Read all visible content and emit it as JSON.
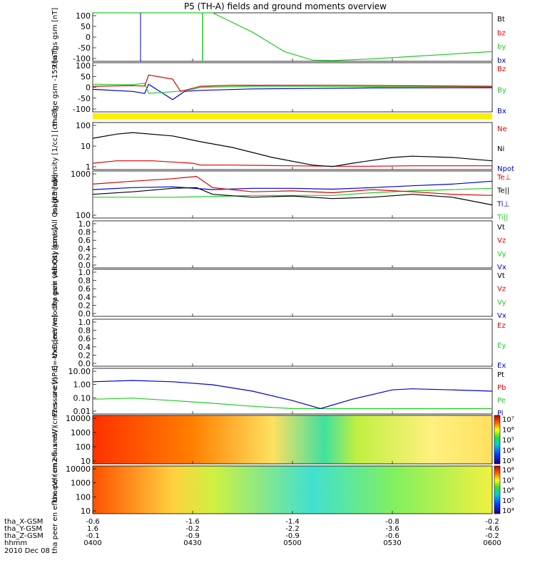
{
  "title": "P5 (TH-A) fields and ground moments overview",
  "colors": {
    "black": "#000000",
    "red": "#e00000",
    "green": "#22cc22",
    "blue": "#0000cc",
    "yellow": "#ffee00"
  },
  "chart_data": [
    {
      "type": "line",
      "ylabel": "tha fgs gsm [nT]",
      "yticks": [
        "100",
        "50",
        "0",
        "-50",
        "-100"
      ],
      "ylim": [
        -100,
        100
      ],
      "legend": [
        "Bt",
        "bz",
        "by",
        "bx"
      ],
      "legend_colors": [
        "black",
        "red",
        "green",
        "blue"
      ]
    },
    {
      "type": "line",
      "ylabel": "tha fge gsm -159 [nT]",
      "yticks": [
        "100",
        "50",
        "0",
        "-50",
        "-100"
      ],
      "ylim": [
        -120,
        120
      ],
      "legend": [
        "Bz",
        "By",
        "Bx"
      ],
      "legend_colors": [
        "red",
        "green",
        "blue"
      ]
    },
    {
      "type": "line",
      "ylabel": "density [1/cc] [cm-3]",
      "scale": "log",
      "yticks": [
        "100",
        "10",
        "1"
      ],
      "legend": [
        "Ne",
        "Ni",
        "Npot"
      ],
      "legend_colors": [
        "red",
        "black",
        "blue"
      ]
    },
    {
      "type": "line",
      "ylabel": "magt3 [eV]",
      "scale": "log",
      "yticks": [
        "1000",
        "100"
      ],
      "legend": [
        "Te⊥",
        "Te||",
        "Ti⊥",
        "Ti||"
      ],
      "legend_colors": [
        "red",
        "black",
        "blue",
        "green"
      ]
    },
    {
      "type": "line",
      "ylabel": "tha peir velocity gsm (All Qs) [km/s]",
      "yticks": [
        "1.0",
        "0.8",
        "0.6",
        "0.4",
        "0.2",
        "0.0"
      ],
      "ylim": [
        0,
        1
      ],
      "legend": [
        "Vt",
        "Vz",
        "Vy",
        "Vx"
      ],
      "legend_colors": [
        "black",
        "red",
        "green",
        "blue"
      ]
    },
    {
      "type": "line",
      "ylabel": "tha peer velocity gsm (All Qs) [km/s]",
      "yticks": [
        "1.0",
        "0.8",
        "0.6",
        "0.4",
        "0.2",
        "0.0"
      ],
      "ylim": [
        0,
        1
      ],
      "legend": [
        "Vt",
        "Vz",
        "Vy",
        "Vx"
      ],
      "legend_colors": [
        "black",
        "red",
        "green",
        "blue"
      ]
    },
    {
      "type": "line",
      "ylabel": "E=-VxB [mV/m]",
      "yticks": [
        "1.0",
        "0.8",
        "0.6",
        "0.4",
        "0.2",
        "0.0"
      ],
      "ylim": [
        0,
        1
      ],
      "legend": [
        "Ez",
        "Ey",
        "Ex"
      ],
      "legend_colors": [
        "red",
        "green",
        "blue"
      ]
    },
    {
      "type": "line",
      "ylabel": "Pressure [nPa]",
      "scale": "log",
      "yticks": [
        "10.00",
        "1.00",
        "0.10",
        "0.01"
      ],
      "legend": [
        "Pt",
        "Pb",
        "Pe",
        "Pi"
      ],
      "legend_colors": [
        "black",
        "red",
        "green",
        "blue"
      ]
    },
    {
      "type": "heatmap",
      "ylabel": "tha peir en eflux eV/ (cm2-s- sr-eV)",
      "scale": "log",
      "yticks": [
        "10000",
        "1000",
        "100",
        "10"
      ],
      "colorbar_ticks": [
        "10⁷",
        "10⁶",
        "10⁵",
        "10⁴",
        "10³"
      ]
    },
    {
      "type": "heatmap",
      "ylabel": "tha peer en eflux eV/ (cm2-s- sr-eV)",
      "scale": "log",
      "yticks": [
        "10000",
        "1000",
        "100",
        "10"
      ],
      "colorbar_ticks": [
        "10⁸",
        "10⁷",
        "10⁶",
        "10⁵",
        "10⁴"
      ]
    }
  ],
  "xaxis": {
    "rows": [
      {
        "label": "tha_X-GSM",
        "values": [
          "-0.6",
          "-1.6",
          "-1.4",
          "-0.8",
          "-0.2"
        ]
      },
      {
        "label": "tha_Y-GSM",
        "values": [
          "1.6",
          "-0.2",
          "-2.2",
          "-3.6",
          "-4.6"
        ]
      },
      {
        "label": "tha_Z-GSM",
        "values": [
          "-0.1",
          "-0.9",
          "-0.9",
          "-0.6",
          "-0.2"
        ]
      },
      {
        "label": "hhmm",
        "values": [
          "0400",
          "0430",
          "0500",
          "0530",
          "0600"
        ]
      }
    ],
    "date": "2010 Dec 08"
  },
  "curves": {
    "p1_by": [
      [
        0,
        100
      ],
      [
        0.3,
        100
      ],
      [
        0.4,
        20
      ],
      [
        0.48,
        -60
      ],
      [
        0.55,
        -95
      ],
      [
        0.6,
        -97
      ],
      [
        0.7,
        -90
      ],
      [
        0.85,
        -75
      ],
      [
        1.0,
        -60
      ]
    ],
    "p2_bz": [
      [
        0,
        5
      ],
      [
        0.1,
        8
      ],
      [
        0.13,
        6
      ],
      [
        0.14,
        60
      ],
      [
        0.2,
        40
      ],
      [
        0.22,
        -20
      ],
      [
        0.25,
        -5
      ],
      [
        0.27,
        5
      ],
      [
        0.35,
        10
      ],
      [
        0.6,
        10
      ],
      [
        1.0,
        5
      ]
    ],
    "p2_by": [
      [
        0,
        15
      ],
      [
        0.1,
        12
      ],
      [
        0.13,
        20
      ],
      [
        0.14,
        -30
      ],
      [
        0.21,
        -20
      ],
      [
        0.25,
        -10
      ],
      [
        0.27,
        0
      ],
      [
        0.4,
        5
      ],
      [
        0.7,
        3
      ],
      [
        1.0,
        2
      ]
    ],
    "p2_bx": [
      [
        0,
        -10
      ],
      [
        0.1,
        -20
      ],
      [
        0.13,
        -30
      ],
      [
        0.14,
        15
      ],
      [
        0.2,
        -60
      ],
      [
        0.23,
        -20
      ],
      [
        0.27,
        -15
      ],
      [
        0.4,
        -8
      ],
      [
        0.7,
        -3
      ],
      [
        1.0,
        -2
      ]
    ],
    "p3_ni": [
      [
        0,
        30
      ],
      [
        0.06,
        50
      ],
      [
        0.1,
        60
      ],
      [
        0.2,
        40
      ],
      [
        0.27,
        20
      ],
      [
        0.35,
        10
      ],
      [
        0.45,
        3
      ],
      [
        0.55,
        1.2
      ],
      [
        0.6,
        1
      ],
      [
        0.65,
        1.5
      ],
      [
        0.75,
        3
      ],
      [
        0.8,
        3.5
      ],
      [
        0.9,
        3
      ],
      [
        1.0,
        2
      ]
    ],
    "p3_ne": [
      [
        0,
        1.5
      ],
      [
        0.06,
        2
      ],
      [
        0.15,
        2
      ],
      [
        0.25,
        1.5
      ],
      [
        0.27,
        1.2
      ],
      [
        0.35,
        1.2
      ],
      [
        0.5,
        1.1
      ],
      [
        0.6,
        1.05
      ],
      [
        0.7,
        1.05
      ],
      [
        0.8,
        1.1
      ],
      [
        1.0,
        1.1
      ]
    ],
    "p4_red": [
      [
        0,
        600
      ],
      [
        0.1,
        700
      ],
      [
        0.2,
        800
      ],
      [
        0.26,
        900
      ],
      [
        0.3,
        500
      ],
      [
        0.4,
        400
      ],
      [
        0.5,
        420
      ],
      [
        0.6,
        380
      ],
      [
        0.7,
        450
      ],
      [
        0.8,
        400
      ],
      [
        0.9,
        350
      ],
      [
        1.0,
        330
      ]
    ],
    "p4_black": [
      [
        0,
        350
      ],
      [
        0.1,
        400
      ],
      [
        0.2,
        480
      ],
      [
        0.26,
        500
      ],
      [
        0.3,
        350
      ],
      [
        0.4,
        300
      ],
      [
        0.5,
        320
      ],
      [
        0.6,
        280
      ],
      [
        0.7,
        300
      ],
      [
        0.8,
        350
      ],
      [
        0.9,
        300
      ],
      [
        1.0,
        200
      ]
    ],
    "p4_blue": [
      [
        0,
        450
      ],
      [
        0.1,
        500
      ],
      [
        0.2,
        520
      ],
      [
        0.3,
        450
      ],
      [
        0.4,
        480
      ],
      [
        0.5,
        480
      ],
      [
        0.6,
        460
      ],
      [
        0.7,
        500
      ],
      [
        0.8,
        550
      ],
      [
        0.9,
        600
      ],
      [
        1.0,
        700
      ]
    ],
    "p4_green": [
      [
        0,
        300
      ],
      [
        0.2,
        300
      ],
      [
        0.3,
        310
      ],
      [
        0.4,
        330
      ],
      [
        0.6,
        330
      ],
      [
        0.7,
        380
      ],
      [
        0.8,
        420
      ],
      [
        0.9,
        450
      ],
      [
        1.0,
        480
      ]
    ],
    "p8_pi": [
      [
        0,
        2
      ],
      [
        0.1,
        2.5
      ],
      [
        0.2,
        2
      ],
      [
        0.3,
        1.2
      ],
      [
        0.4,
        0.4
      ],
      [
        0.5,
        0.08
      ],
      [
        0.57,
        0.02
      ],
      [
        0.65,
        0.1
      ],
      [
        0.75,
        0.5
      ],
      [
        0.8,
        0.6
      ],
      [
        0.9,
        0.5
      ],
      [
        1.0,
        0.4
      ]
    ],
    "p8_pe": [
      [
        0,
        0.1
      ],
      [
        0.1,
        0.12
      ],
      [
        0.2,
        0.08
      ],
      [
        0.3,
        0.05
      ],
      [
        0.4,
        0.03
      ],
      [
        0.5,
        0.02
      ],
      [
        0.6,
        0.02
      ],
      [
        0.8,
        0.02
      ],
      [
        1.0,
        0.02
      ]
    ]
  }
}
